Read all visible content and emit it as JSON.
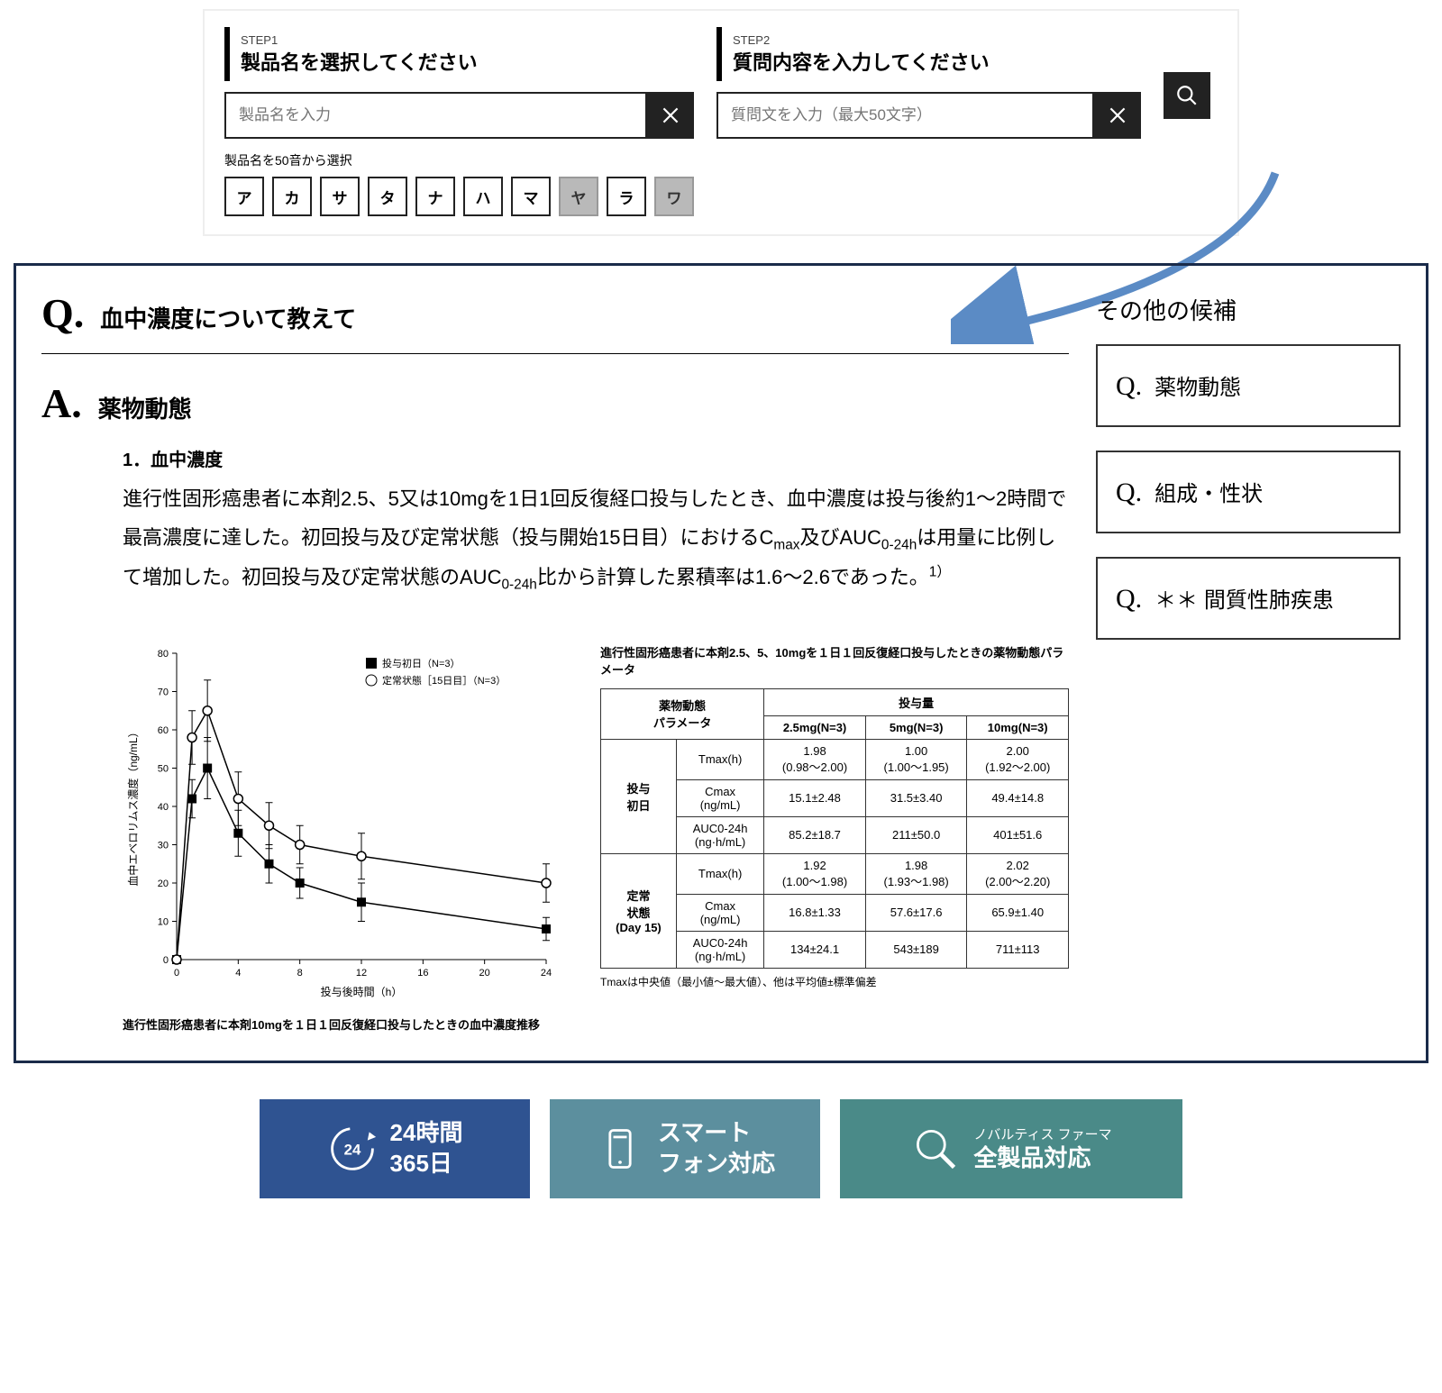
{
  "search": {
    "step1": {
      "label": "STEP1",
      "title": "製品名を選択してください",
      "placeholder": "製品名を入力"
    },
    "step2": {
      "label": "STEP2",
      "title": "質問内容を入力してください",
      "placeholder": "質問文を入力（最大50文字）"
    },
    "gojuon_label": "製品名を50音から選択",
    "gojuon": [
      "ア",
      "カ",
      "サ",
      "タ",
      "ナ",
      "ハ",
      "マ",
      "ヤ",
      "ラ",
      "ワ"
    ],
    "gojuon_disabled": [
      false,
      false,
      false,
      false,
      false,
      false,
      false,
      true,
      false,
      true
    ]
  },
  "qa": {
    "q_prefix": "Q.",
    "a_prefix": "A.",
    "question": "血中濃度について教えて",
    "answer_title": "薬物動態",
    "section_heading": "1．血中濃度",
    "paragraph_html": "進行性固形癌患者に本剤2.5、5又は10mgを1日1回反復経口投与したとき、血中濃度は投与後約1～2時間で最高濃度に達した。初回投与及び定常状態（投与開始15日目）におけるC<sub>max</sub>及びAUC<sub>0-24h</sub>は用量に比例して増加した。初回投与及び定常状態のAUC<sub>0-24h</sub>比から計算した累積率は1.6～2.6であった。<sup>1）</sup>"
  },
  "chart": {
    "type": "line",
    "caption": "進行性固形癌患者に本剤10mgを１日１回反復経口投与したときの血中濃度推移",
    "xlabel": "投与後時間（h）",
    "ylabel": "血中エベロリムス濃度（ng/mL）",
    "xlim": [
      0,
      24
    ],
    "ylim": [
      0,
      80
    ],
    "xticks": [
      0,
      4,
      8,
      12,
      16,
      20,
      24
    ],
    "yticks": [
      0,
      10,
      20,
      30,
      40,
      50,
      60,
      70,
      80
    ],
    "legend": [
      {
        "label": "投与初日（N=3）",
        "marker": "square-filled"
      },
      {
        "label": "定常状態［15日目］（N=3）",
        "marker": "circle-open"
      }
    ],
    "series": [
      {
        "name": "day1",
        "x": [
          0,
          1,
          2,
          4,
          6,
          8,
          12,
          24
        ],
        "y": [
          0,
          42,
          50,
          33,
          25,
          20,
          15,
          8
        ],
        "err": [
          0,
          5,
          8,
          6,
          5,
          4,
          5,
          3
        ],
        "color": "#000",
        "marker": "square-filled"
      },
      {
        "name": "day15",
        "x": [
          0,
          1,
          2,
          4,
          6,
          8,
          12,
          24
        ],
        "y": [
          0,
          58,
          65,
          42,
          35,
          30,
          27,
          20
        ],
        "err": [
          0,
          7,
          8,
          7,
          6,
          5,
          6,
          5
        ],
        "color": "#000",
        "marker": "circle-open"
      }
    ],
    "bg": "#ffffff",
    "grid_color": "#cccccc",
    "tick_fontsize": 11,
    "label_fontsize": 12
  },
  "table": {
    "title": "進行性固形癌患者に本剤2.5、5、10mgを１日１回反復経口投与したときの薬物動態パラメータ",
    "dose_header": "投与量",
    "param_header": "薬物動態\nパラメータ",
    "doses": [
      "2.5mg(N=3)",
      "5mg(N=3)",
      "10mg(N=3)"
    ],
    "groups": [
      {
        "label": "投与\n初日",
        "rows": [
          {
            "p": "Tmax(h)",
            "v": [
              "1.98\n(0.98〜2.00)",
              "1.00\n(1.00〜1.95)",
              "2.00\n(1.92〜2.00)"
            ]
          },
          {
            "p": "Cmax\n(ng/mL)",
            "v": [
              "15.1±2.48",
              "31.5±3.40",
              "49.4±14.8"
            ]
          },
          {
            "p": "AUC0-24h\n(ng·h/mL)",
            "v": [
              "85.2±18.7",
              "211±50.0",
              "401±51.6"
            ]
          }
        ]
      },
      {
        "label": "定常\n状態\n(Day 15)",
        "rows": [
          {
            "p": "Tmax(h)",
            "v": [
              "1.92\n(1.00〜1.98)",
              "1.98\n(1.93〜1.98)",
              "2.02\n(2.00〜2.20)"
            ]
          },
          {
            "p": "Cmax\n(ng/mL)",
            "v": [
              "16.8±1.33",
              "57.6±17.6",
              "65.9±1.40"
            ]
          },
          {
            "p": "AUC0-24h\n(ng·h/mL)",
            "v": [
              "134±24.1",
              "543±189",
              "711±113"
            ]
          }
        ]
      }
    ],
    "footnote": "Tmaxは中央値（最小値〜最大値）、他は平均値±標準偏差"
  },
  "side": {
    "title": "その他の候補",
    "candidates": [
      "薬物動態",
      "組成・性状",
      "＊＊ 間質性肺疾患"
    ]
  },
  "badges": {
    "b1": {
      "line1": "24時間",
      "line2": "365日"
    },
    "b2": {
      "line1": "スマート",
      "line2": "フォン対応"
    },
    "b3": {
      "top": "ノバルティス ファーマ",
      "line": "全製品対応"
    }
  },
  "colors": {
    "panel_border": "#1a2b4a",
    "arrow": "#5b8bc5"
  }
}
